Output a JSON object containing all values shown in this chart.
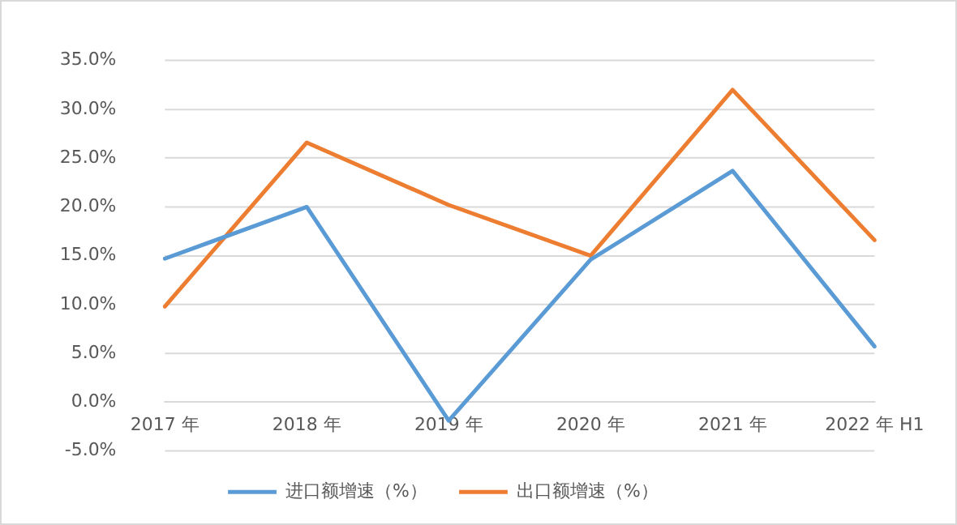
{
  "chart_data": {
    "type": "line",
    "categories": [
      "2017 年",
      "2018 年",
      "2019 年",
      "2020 年",
      "2021 年",
      "2022 年 H1"
    ],
    "series": [
      {
        "name": "进口额增速（%）",
        "color": "#5b9bd5",
        "values": [
          14.7,
          20.0,
          -1.9,
          14.6,
          23.7,
          5.7
        ]
      },
      {
        "name": "出口额增速（%）",
        "color": "#ed7d31",
        "values": [
          9.8,
          26.6,
          20.2,
          15.0,
          32.0,
          16.6
        ]
      }
    ],
    "ylim": [
      -5,
      35
    ],
    "yticks": [
      {
        "value": -5,
        "label": "-5.0%"
      },
      {
        "value": 0,
        "label": "0.0%"
      },
      {
        "value": 5,
        "label": "5.0%"
      },
      {
        "value": 10,
        "label": "10.0%"
      },
      {
        "value": 15,
        "label": "15.0%"
      },
      {
        "value": 20,
        "label": "20.0%"
      },
      {
        "value": 25,
        "label": "25.0%"
      },
      {
        "value": 30,
        "label": "30.0%"
      },
      {
        "value": 35,
        "label": "35.0%"
      }
    ],
    "grid": "y",
    "legend": "bottom",
    "marker": "none",
    "line_style": "solid"
  }
}
